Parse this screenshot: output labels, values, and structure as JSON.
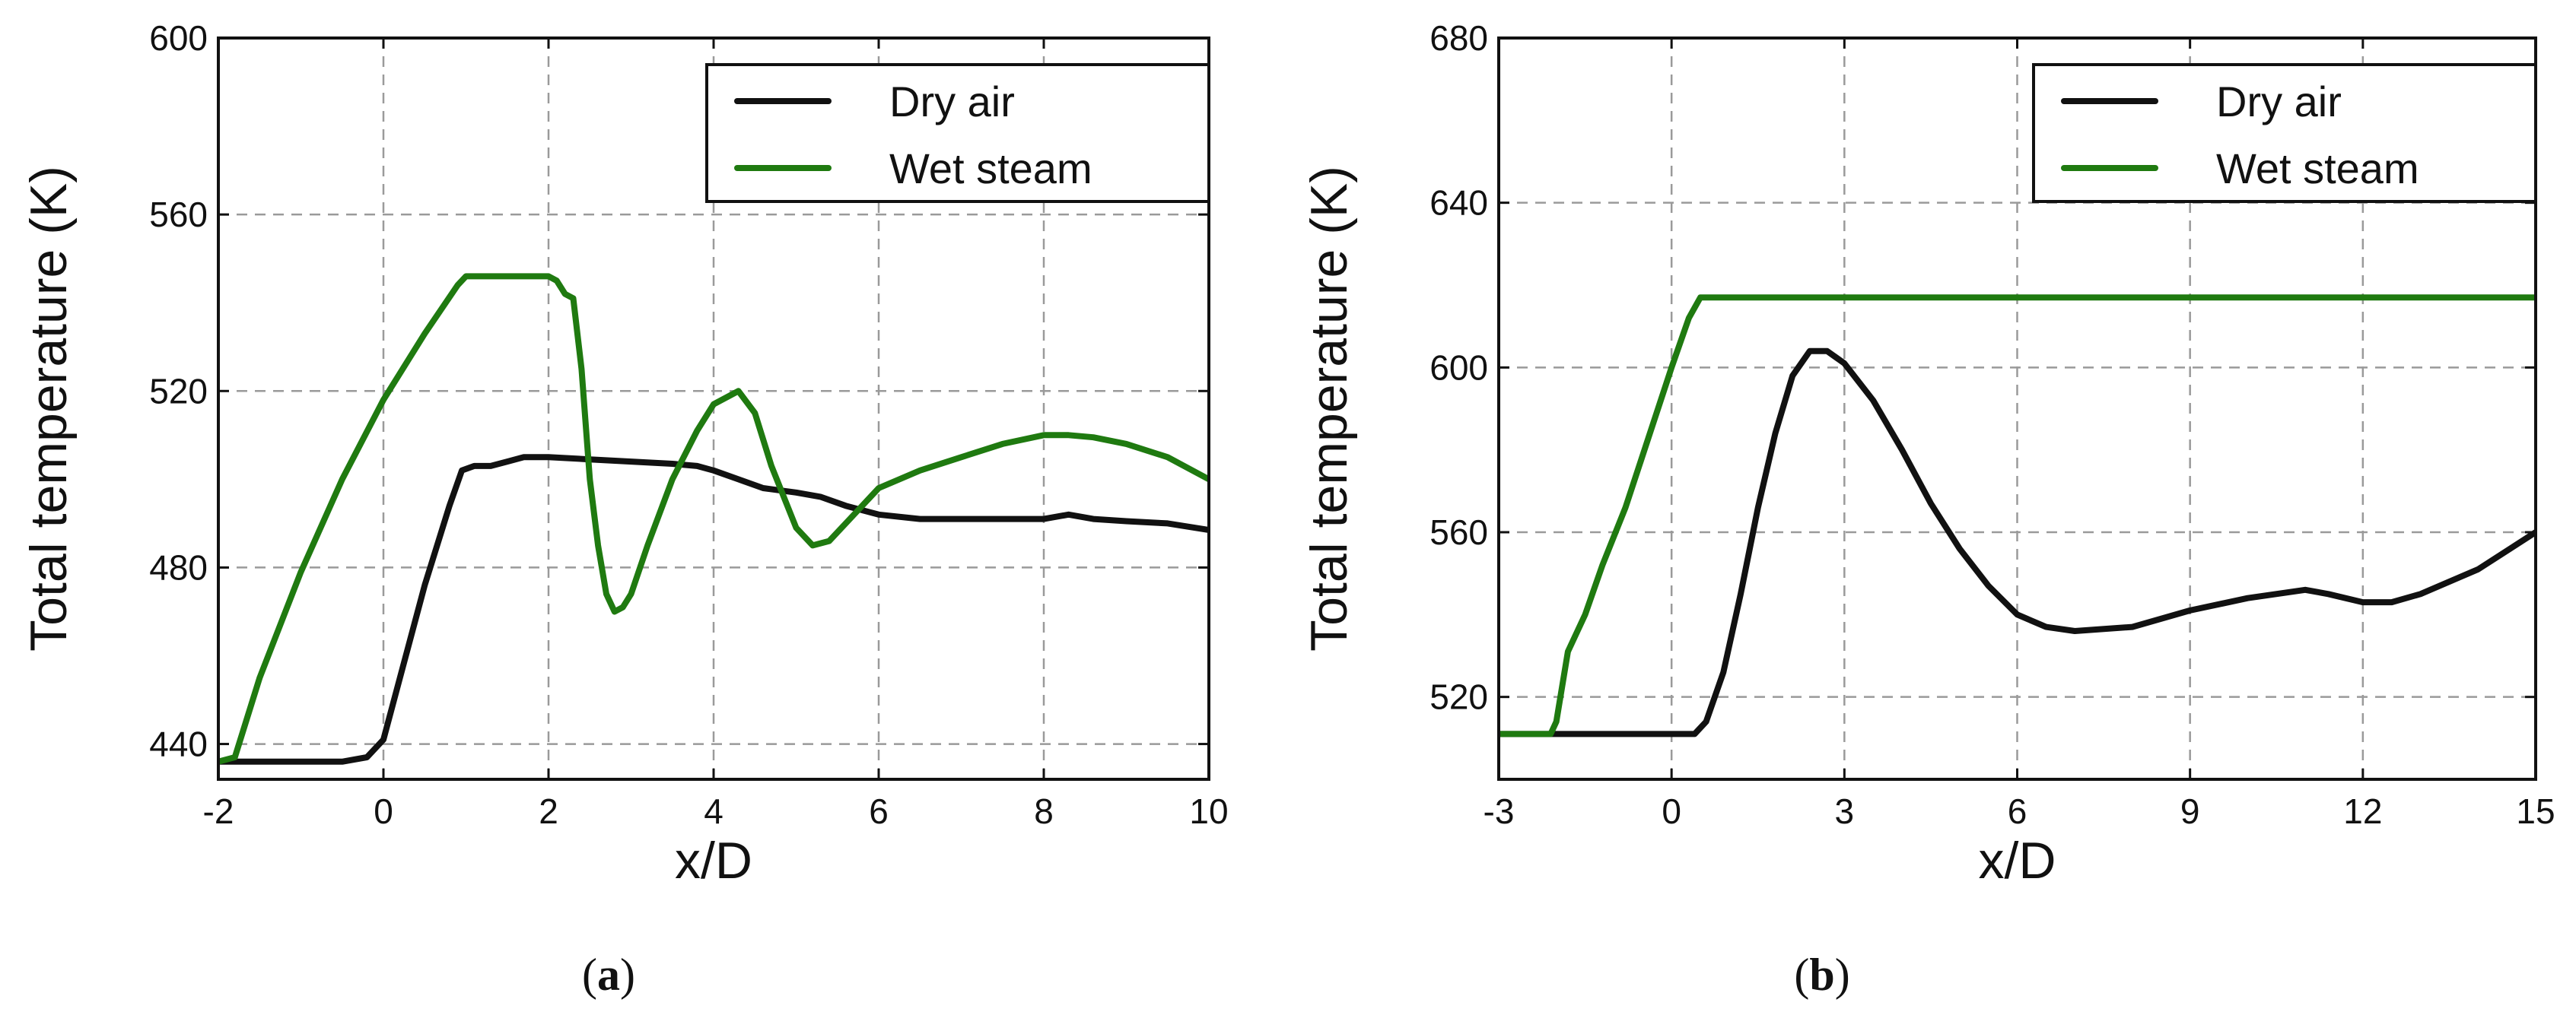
{
  "colors": {
    "dry_air": "#111111",
    "wet_steam": "#1f7a10"
  },
  "chart_data": [
    {
      "type": "line",
      "panel": "(a)",
      "panel_letter": "a",
      "title": "",
      "xlabel": "x/D",
      "ylabel": "Total temperature (K)",
      "xlim": [
        -2,
        10
      ],
      "ylim": [
        432,
        600
      ],
      "xticks": [
        -2,
        0,
        2,
        4,
        6,
        8,
        10
      ],
      "yticks": [
        440,
        480,
        520,
        560,
        600
      ],
      "grid": true,
      "legend_position": "top-right",
      "series": [
        {
          "name": "Dry air",
          "color": "#111111",
          "x": [
            -2,
            -0.5,
            -0.2,
            0,
            0.2,
            0.5,
            0.8,
            0.95,
            1.1,
            1.3,
            1.5,
            1.7,
            2,
            2.5,
            3,
            3.5,
            3.8,
            4,
            4.3,
            4.6,
            5,
            5.3,
            5.6,
            6,
            6.5,
            7,
            7.5,
            8,
            8.3,
            8.6,
            9,
            9.5,
            10
          ],
          "values": [
            436,
            436,
            437,
            441,
            455,
            476,
            494,
            502,
            503,
            503,
            504,
            505,
            505,
            504.5,
            504,
            503.5,
            503,
            502,
            500,
            498,
            497,
            496,
            494,
            492,
            491,
            491,
            491,
            491,
            492,
            491,
            490.5,
            490,
            488.5
          ]
        },
        {
          "name": "Wet steam",
          "color": "#1f7a10",
          "x": [
            -2,
            -1.8,
            -1.5,
            -1,
            -0.5,
            0,
            0.5,
            0.9,
            1,
            1.5,
            2,
            2.1,
            2.2,
            2.3,
            2.4,
            2.5,
            2.6,
            2.7,
            2.8,
            2.9,
            3,
            3.2,
            3.5,
            3.8,
            4,
            4.3,
            4.5,
            4.7,
            5,
            5.2,
            5.4,
            5.7,
            6,
            6.5,
            7,
            7.5,
            8,
            8.3,
            8.6,
            9,
            9.5,
            10
          ],
          "values": [
            436,
            437,
            455,
            479,
            500,
            518,
            533,
            544,
            546,
            546,
            546,
            545,
            542,
            541,
            525,
            500,
            485,
            474,
            470,
            471,
            474,
            485,
            500,
            511,
            517,
            520,
            515,
            503,
            489,
            485,
            486,
            492,
            498,
            502,
            505,
            508,
            510,
            510,
            509.5,
            508,
            505,
            500
          ]
        }
      ]
    },
    {
      "type": "line",
      "panel": "(b)",
      "panel_letter": "b",
      "title": "",
      "xlabel": "x/D",
      "ylabel": "Total temperature (K)",
      "xlim": [
        -3,
        15
      ],
      "ylim": [
        500,
        680
      ],
      "xticks": [
        -3,
        0,
        3,
        6,
        9,
        12,
        15
      ],
      "yticks": [
        520,
        560,
        600,
        640,
        680
      ],
      "grid": true,
      "legend_position": "top-right",
      "series": [
        {
          "name": "Dry air",
          "color": "#111111",
          "x": [
            -3,
            0.4,
            0.6,
            0.9,
            1.2,
            1.5,
            1.8,
            2.1,
            2.4,
            2.7,
            3,
            3.5,
            4,
            4.5,
            5,
            5.5,
            6,
            6.5,
            7,
            8,
            9,
            10,
            11,
            11.4,
            12,
            12.5,
            13,
            14,
            15
          ],
          "values": [
            511,
            511,
            514,
            526,
            545,
            566,
            584,
            598,
            604,
            604,
            601,
            592,
            580,
            567,
            556,
            547,
            540,
            537,
            536,
            537,
            541,
            544,
            546,
            545,
            543,
            543,
            545,
            551,
            560
          ]
        },
        {
          "name": "Wet steam",
          "color": "#1f7a10",
          "x": [
            -3,
            -2.1,
            -2,
            -1.8,
            -1.5,
            -1.2,
            -0.8,
            -0.4,
            0,
            0.3,
            0.5,
            3,
            6,
            9,
            12,
            15
          ],
          "values": [
            511,
            511,
            514,
            531,
            540,
            552,
            566,
            583,
            600,
            612,
            617,
            617,
            617,
            617,
            617,
            617
          ]
        }
      ]
    }
  ]
}
